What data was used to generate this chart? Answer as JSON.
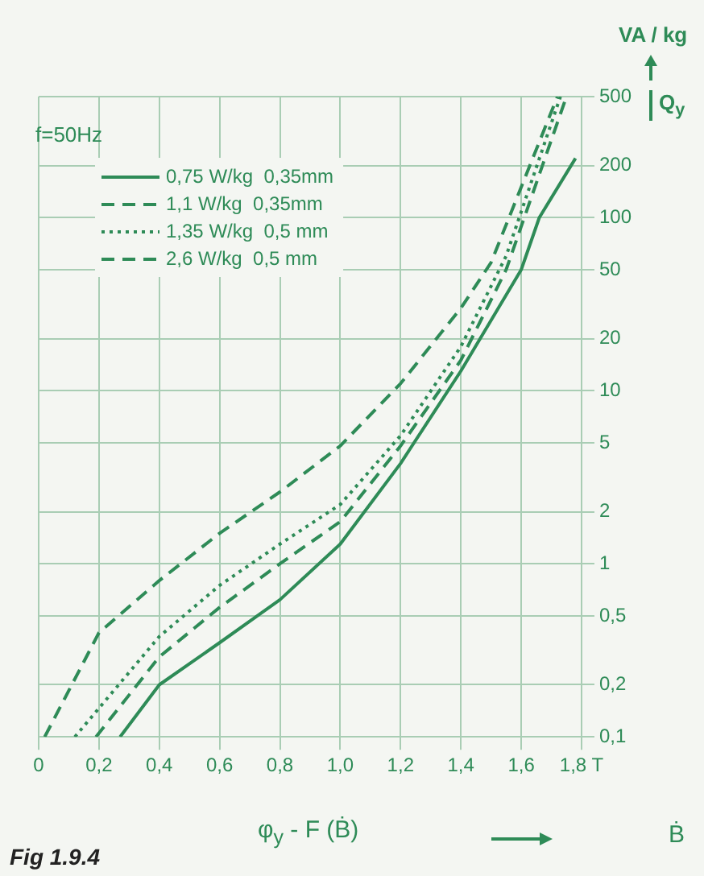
{
  "chart_data": {
    "type": "line",
    "xlabel": "φ$_{y}$ - F (Ḃ)",
    "ylabel": "VA / kg",
    "y2label": "Q$_{y}$",
    "annotations": [
      "f=50Hz",
      "Ḃ",
      "Fig 1.9.4"
    ],
    "log": "y",
    "grid": true,
    "legend": "top left",
    "marker": "none",
    "xlim": [
      0,
      1.8
    ],
    "xticks": [
      0,
      {
        "value": 0.2,
        "label": "0,2"
      },
      {
        "value": 0.4,
        "label": "0,4"
      },
      {
        "value": 0.6,
        "label": "0,6"
      },
      {
        "value": 0.8,
        "label": "0,8"
      },
      {
        "value": 1.0,
        "label": "1,0"
      },
      {
        "value": 1.2,
        "label": "1,2"
      },
      {
        "value": 1.4,
        "label": "1,4"
      },
      {
        "value": 1.6,
        "label": "1,6"
      },
      {
        "value": 1.8,
        "label": "1,8 T"
      }
    ],
    "ylim": [
      0.1,
      500
    ],
    "yticks": [
      {
        "value": 0.1,
        "label": "0,1"
      },
      {
        "value": 0.2,
        "label": "0,2"
      },
      {
        "value": 0.5,
        "label": "0,5"
      },
      1,
      2,
      5,
      10,
      20,
      50,
      100,
      200,
      500
    ],
    "series": [
      {
        "name": "0,75 W/kg  0,35mm",
        "color": "#2e8b57",
        "line_style": "solid",
        "x": [
          0.27,
          0.4,
          0.6,
          0.8,
          1.0,
          1.2,
          1.4,
          1.6,
          1.66,
          1.78
        ],
        "values": [
          0.1,
          0.2,
          0.35,
          0.62,
          1.3,
          3.8,
          13,
          50,
          100,
          220
        ]
      },
      {
        "name": "1,1 W/kg  0,35mm",
        "color": "#2e8b57",
        "line_style": "dashed",
        "x": [
          0.19,
          0.4,
          0.6,
          0.8,
          1.0,
          1.2,
          1.4,
          1.55,
          1.75
        ],
        "values": [
          0.1,
          0.29,
          0.56,
          1.0,
          1.75,
          4.8,
          15,
          50,
          500
        ]
      },
      {
        "name": "1,35 W/kg  0,5 mm",
        "color": "#2e8b57",
        "line_style": "dotted",
        "x": [
          0.12,
          0.4,
          0.6,
          0.8,
          1.0,
          1.2,
          1.4,
          1.55,
          1.73
        ],
        "values": [
          0.1,
          0.38,
          0.75,
          1.3,
          2.2,
          5.5,
          18,
          60,
          500
        ]
      },
      {
        "name": "2,6 W/kg  0,5 mm",
        "color": "#2e8b57",
        "line_style": "dashed",
        "x": [
          0.02,
          0.2,
          0.4,
          0.6,
          0.8,
          1.0,
          1.2,
          1.4,
          1.5,
          1.72
        ],
        "values": [
          0.1,
          0.4,
          0.8,
          1.5,
          2.6,
          4.8,
          11,
          30,
          55,
          500
        ]
      }
    ]
  }
}
